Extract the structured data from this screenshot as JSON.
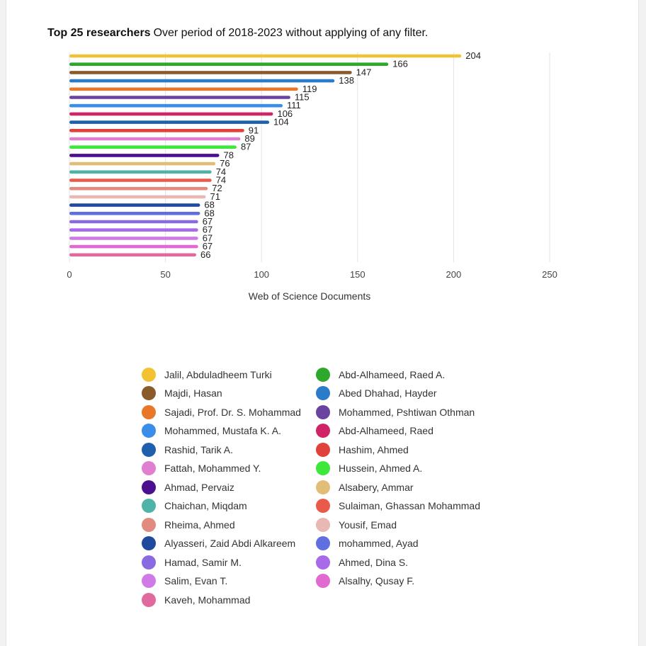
{
  "title": {
    "bold": "Top 25 researchers",
    "rest": "Over period of 2018-2023 without applying of any filter."
  },
  "chart_data": {
    "type": "bar",
    "orientation": "horizontal",
    "title": "Top 25 researchers",
    "subtitle": "Over period of 2018-2023 without applying of any filter.",
    "xlabel": "Web of Science Documents",
    "ylabel": "",
    "xlim": [
      0,
      250
    ],
    "xticks": [
      0,
      50,
      100,
      150,
      200,
      250
    ],
    "grid": true,
    "legend_position": "bottom",
    "categories": [
      "Jalil, Abduladheem Turki",
      "Abd-Alhameed, Raed A.",
      "Majdi, Hasan",
      "Abed Dhahad, Hayder",
      "Sajadi, Prof. Dr. S. Mohammad",
      "Mohammed, Pshtiwan Othman",
      "Mohammed, Mustafa K. A.",
      "Abd-Alhameed, Raed",
      "Rashid, Tarik A.",
      "Hashim, Ahmed",
      "Fattah, Mohammed Y.",
      "Hussein, Ahmed A.",
      "Ahmad, Pervaiz",
      "Alsabery, Ammar",
      "Chaichan, Miqdam",
      "Sulaiman, Ghassan Mohammad",
      "Rheima, Ahmed",
      "Yousif, Emad",
      "Alyasseri, Zaid Abdi Alkareem",
      "mohammed, Ayad",
      "Hamad, Samir M.",
      "Ahmed, Dina S.",
      "Salim, Evan T.",
      "Alsalhy, Qusay F.",
      "Kaveh, Mohammad"
    ],
    "values": [
      204,
      166,
      147,
      138,
      119,
      115,
      111,
      106,
      104,
      91,
      89,
      87,
      78,
      76,
      74,
      74,
      72,
      71,
      68,
      68,
      67,
      67,
      67,
      67,
      66
    ],
    "colors": [
      "#f2c232",
      "#2ea82a",
      "#8b5a2b",
      "#2b7bc8",
      "#e8772a",
      "#6a43a0",
      "#3a8de8",
      "#d02466",
      "#1f5fad",
      "#e0413a",
      "#e07fd0",
      "#3ee83a",
      "#4b0f8f",
      "#e0be78",
      "#4fb3a8",
      "#e85a4a",
      "#e08a80",
      "#e8b8b4",
      "#1f4a9e",
      "#5f6fe0",
      "#8a6ae0",
      "#a86ae8",
      "#d07ae8",
      "#e06ad0",
      "#e06a9e"
    ]
  },
  "legend": [
    {
      "label": "Jalil, Abduladheem Turki",
      "color": "#f2c232"
    },
    {
      "label": "Abd-Alhameed, Raed A.",
      "color": "#2ea82a"
    },
    {
      "label": "Majdi, Hasan",
      "color": "#8b5a2b"
    },
    {
      "label": "Abed Dhahad, Hayder",
      "color": "#2b7bc8"
    },
    {
      "label": "Sajadi, Prof. Dr. S. Mohammad",
      "color": "#e8772a"
    },
    {
      "label": "Mohammed, Pshtiwan Othman",
      "color": "#6a43a0"
    },
    {
      "label": "Mohammed, Mustafa K. A.",
      "color": "#3a8de8"
    },
    {
      "label": "Abd-Alhameed, Raed",
      "color": "#d02466"
    },
    {
      "label": "Rashid, Tarik A.",
      "color": "#1f5fad"
    },
    {
      "label": "Hashim, Ahmed",
      "color": "#e0413a"
    },
    {
      "label": "Fattah, Mohammed Y.",
      "color": "#e07fd0"
    },
    {
      "label": "Hussein, Ahmed A.",
      "color": "#3ee83a"
    },
    {
      "label": "Ahmad, Pervaiz",
      "color": "#4b0f8f"
    },
    {
      "label": "Alsabery, Ammar",
      "color": "#e0be78"
    },
    {
      "label": "Chaichan, Miqdam",
      "color": "#4fb3a8"
    },
    {
      "label": "Sulaiman, Ghassan Mohammad",
      "color": "#e85a4a"
    },
    {
      "label": "Rheima, Ahmed",
      "color": "#e08a80"
    },
    {
      "label": "Yousif, Emad",
      "color": "#e8b8b4"
    },
    {
      "label": "Alyasseri, Zaid Abdi Alkareem",
      "color": "#1f4a9e"
    },
    {
      "label": "mohammed, Ayad",
      "color": "#5f6fe0"
    },
    {
      "label": "Hamad, Samir M.",
      "color": "#8a6ae0"
    },
    {
      "label": "Ahmed, Dina S.",
      "color": "#a86ae8"
    },
    {
      "label": "Salim, Evan T.",
      "color": "#d07ae8"
    },
    {
      "label": "Alsalhy, Qusay F.",
      "color": "#e06ad0"
    },
    {
      "label": "Kaveh, Mohammad",
      "color": "#e06a9e"
    }
  ]
}
